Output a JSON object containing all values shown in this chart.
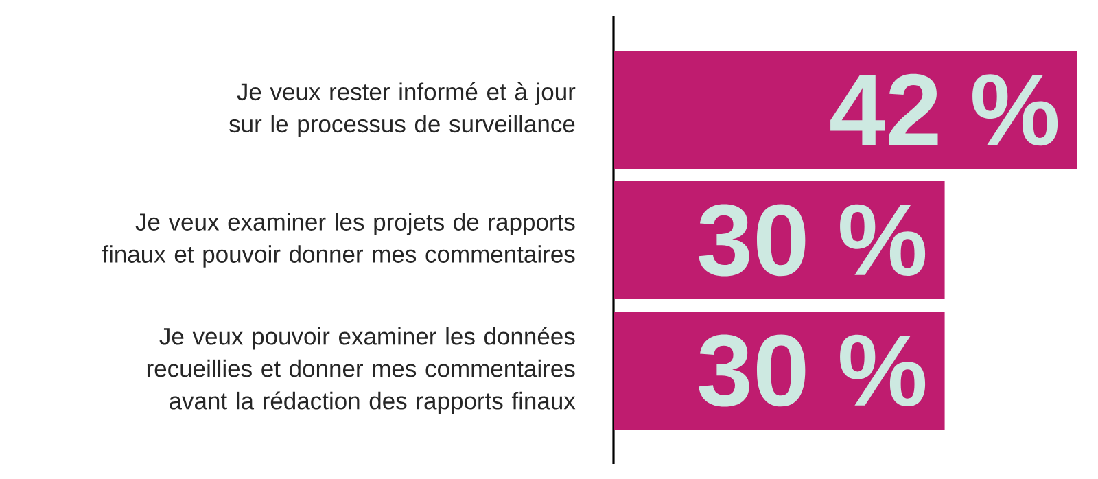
{
  "chart_data": {
    "type": "bar",
    "orientation": "horizontal",
    "categories": [
      "Je veux rester informé et à jour sur le processus de surveillance",
      "Je veux examiner les projets de rapports finaux et pouvoir donner mes commentaires",
      "Je veux pouvoir examiner les données recueillies et donner mes commentaires avant la rédaction des rapports finaux"
    ],
    "values": [
      42,
      30,
      30
    ],
    "color": "#bf1c6f",
    "value_labels": [
      "42 %",
      "30 %",
      "30 %"
    ]
  }
}
